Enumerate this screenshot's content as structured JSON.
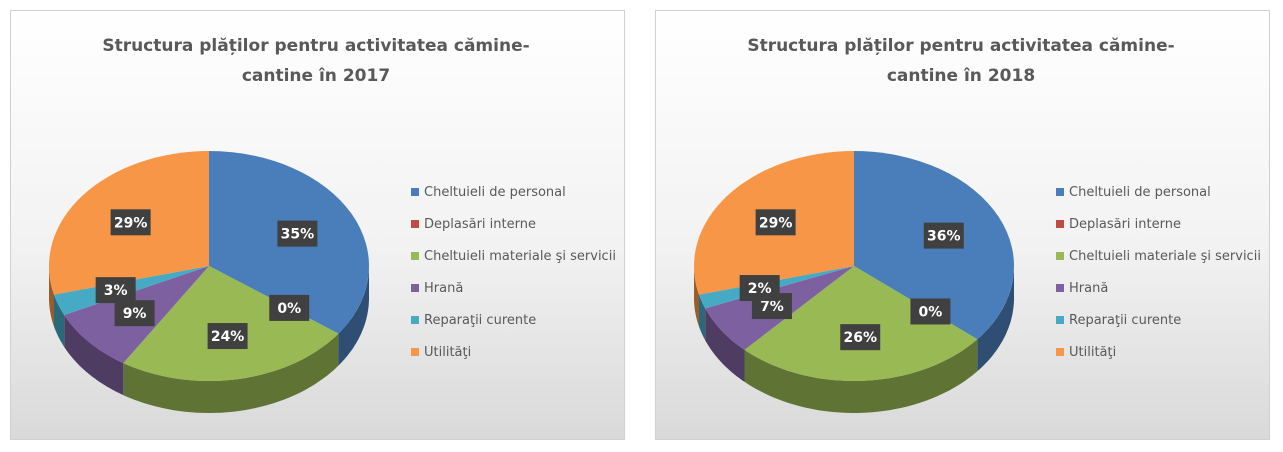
{
  "chart_data": [
    {
      "type": "pie",
      "title": "Structura plăților pentru activitatea cămine-cantine în 2017",
      "categories": [
        "Cheltuieli de personal",
        "Deplasări interne",
        "Cheltuieli materiale şi servicii",
        "Hrană",
        "Reparaţii curente",
        "Utilităţi"
      ],
      "values": [
        35,
        0,
        24,
        9,
        3,
        29
      ],
      "value_labels": [
        "35%",
        "0%",
        "24%",
        "9%",
        "3%",
        "29%"
      ],
      "colors": [
        "#4a7ebb",
        "#be4b48",
        "#98b954",
        "#7d60a0",
        "#46aac5",
        "#f79646"
      ],
      "legend": "right"
    },
    {
      "type": "pie",
      "title": "Structura plăților pentru activitatea cămine-cantine în 2018",
      "categories": [
        "Cheltuieli de personal",
        "Deplasări interne",
        "Cheltuieli materiale şi servicii",
        "Hrană",
        "Reparaţii curente",
        "Utilităţi"
      ],
      "values": [
        36,
        0,
        26,
        7,
        2,
        29
      ],
      "value_labels": [
        "36%",
        "0%",
        "26%",
        "7%",
        "2%",
        "29%"
      ],
      "colors": [
        "#4a7ebb",
        "#be4b48",
        "#98b954",
        "#7d60a0",
        "#46aac5",
        "#f79646"
      ],
      "legend": "right"
    }
  ]
}
